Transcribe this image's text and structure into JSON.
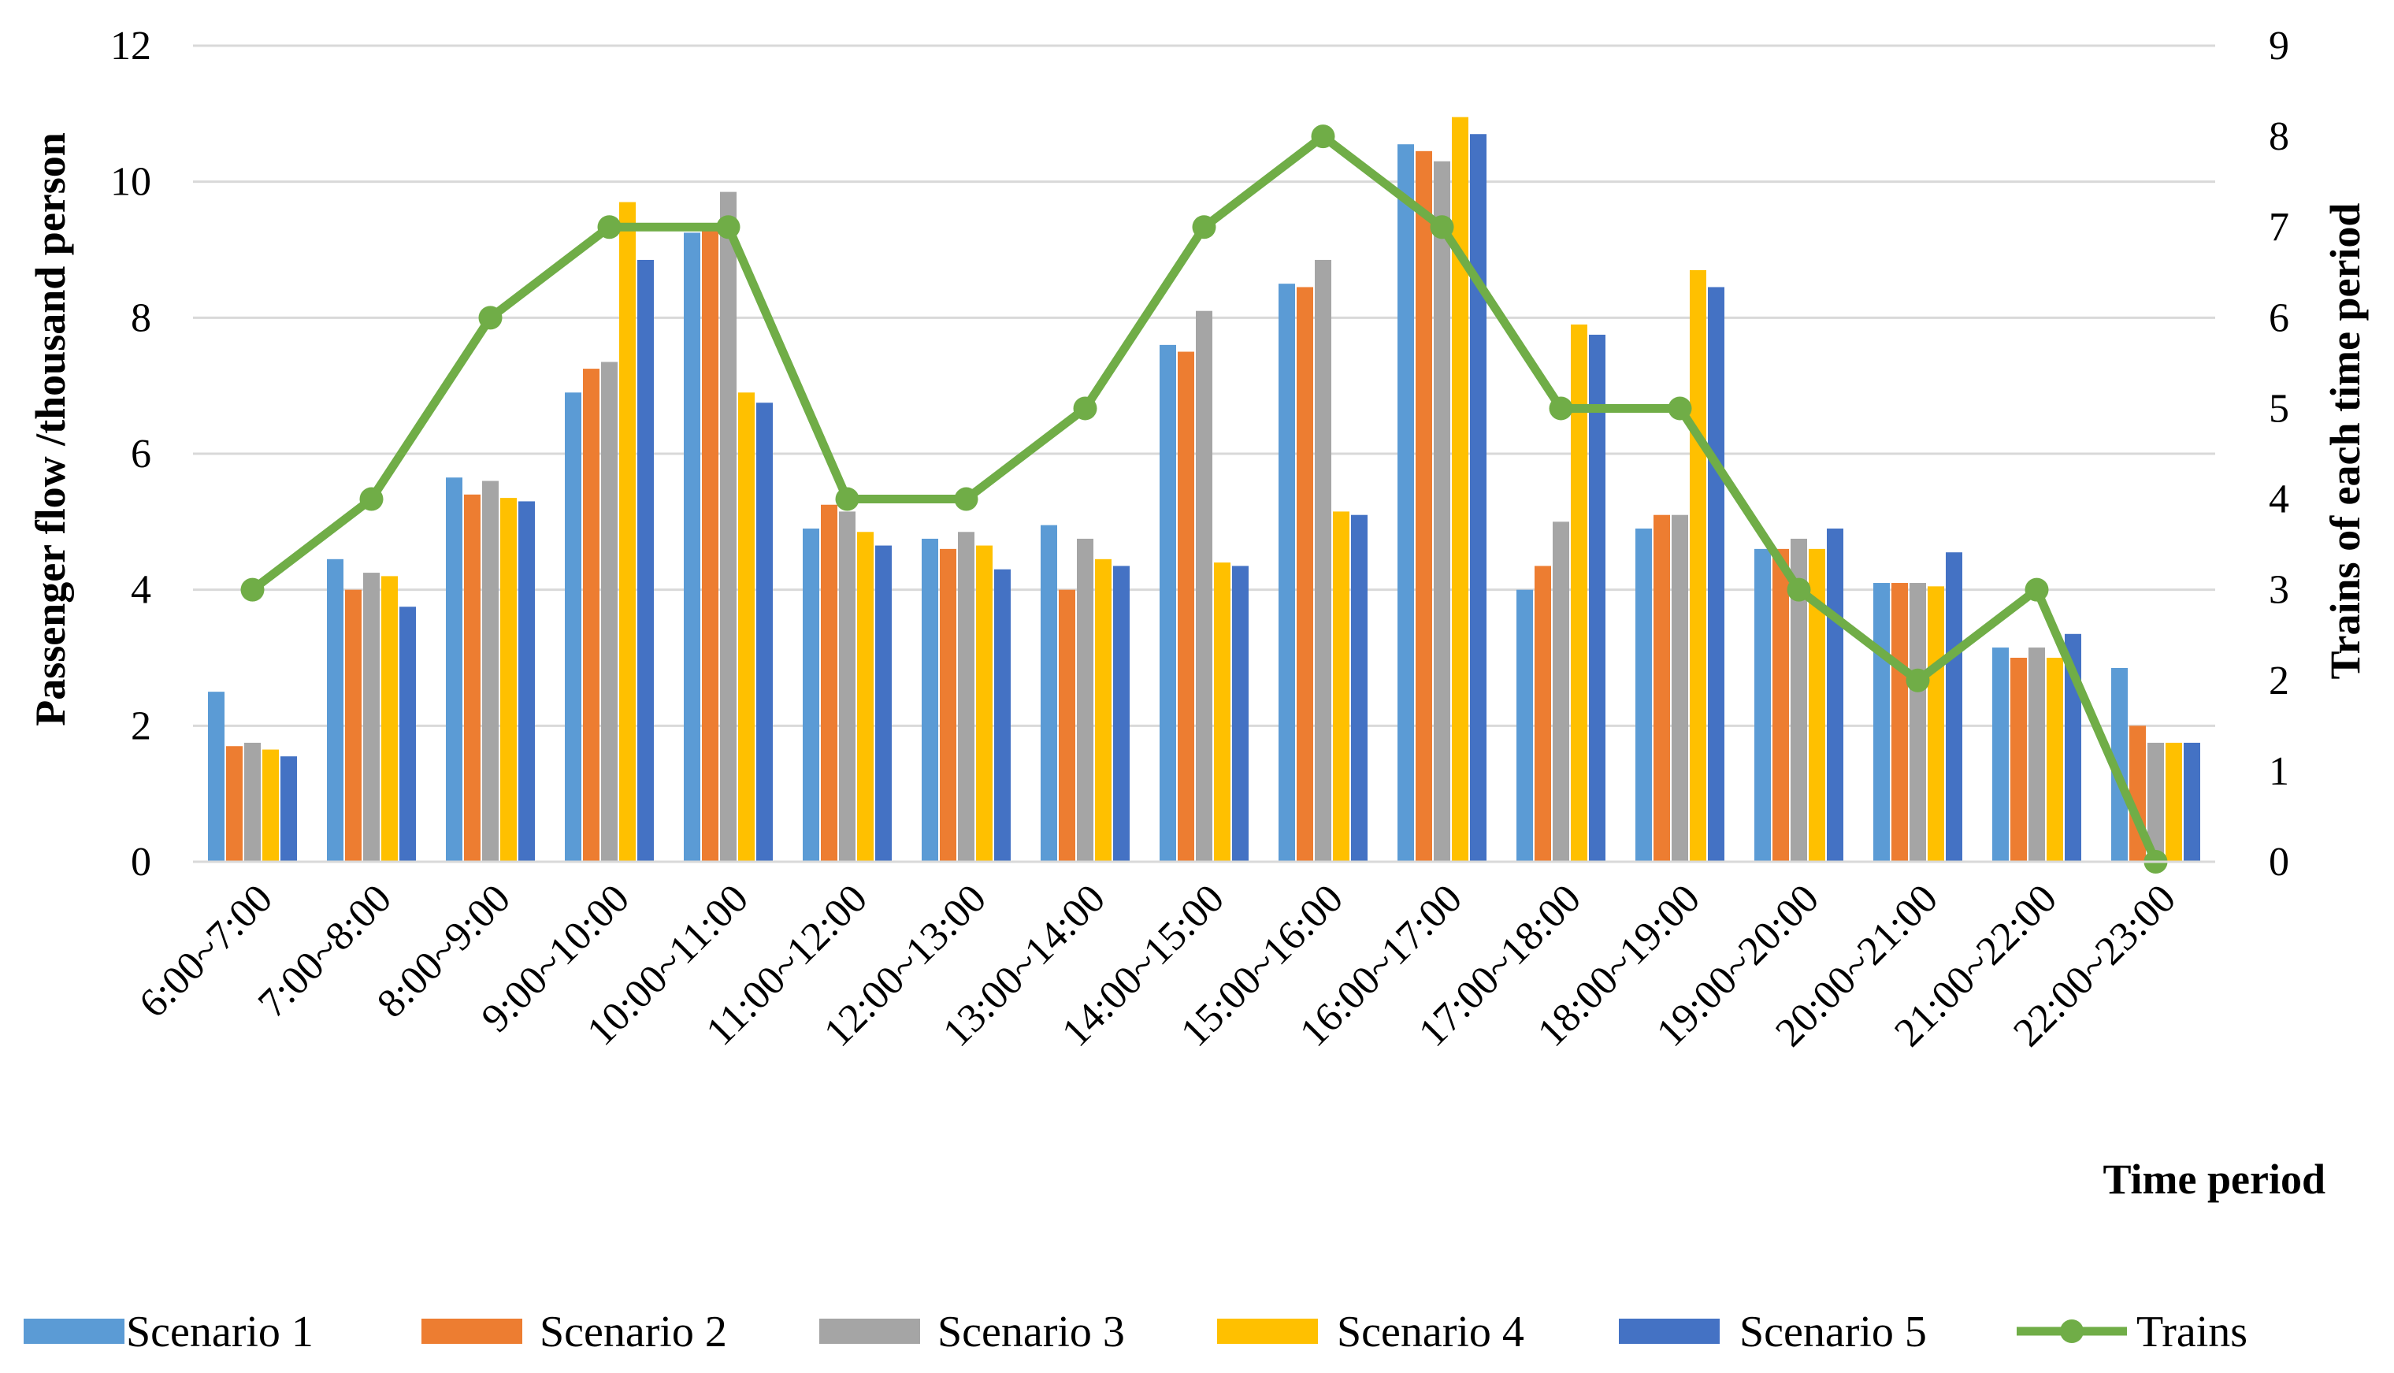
{
  "chart_data": {
    "type": "bar",
    "title": "",
    "categories": [
      "6:00~7:00",
      "7:00~8:00",
      "8:00~9:00",
      "9:00~10:00",
      "10:00~11:00",
      "11:00~12:00",
      "12:00~13:00",
      "13:00~14:00",
      "14:00~15:00",
      "15:00~16:00",
      "16:00~17:00",
      "17:00~18:00",
      "18:00~19:00",
      "19:00~20:00",
      "20:00~21:00",
      "21:00~22:00",
      "22:00~23:00"
    ],
    "series": [
      {
        "name": "Scenario 1",
        "type": "bar",
        "axis": "left",
        "color": "#5B9BD5",
        "values": [
          2.5,
          4.45,
          5.65,
          6.9,
          9.25,
          4.9,
          4.75,
          4.95,
          7.6,
          8.5,
          10.55,
          4.0,
          4.9,
          4.6,
          4.1,
          3.15,
          2.85
        ]
      },
      {
        "name": "Scenario 2",
        "type": "bar",
        "axis": "left",
        "color": "#ED7D31",
        "values": [
          1.7,
          4.0,
          5.4,
          7.25,
          9.3,
          5.25,
          4.6,
          4.0,
          7.5,
          8.45,
          10.45,
          4.35,
          5.1,
          4.6,
          4.1,
          3.0,
          2.0
        ]
      },
      {
        "name": "Scenario 3",
        "type": "bar",
        "axis": "left",
        "color": "#A5A5A5",
        "values": [
          1.75,
          4.25,
          5.6,
          7.35,
          9.85,
          5.15,
          4.85,
          4.75,
          8.1,
          8.85,
          10.3,
          5.0,
          5.1,
          4.75,
          4.1,
          3.15,
          1.75
        ]
      },
      {
        "name": "Scenario 4",
        "type": "bar",
        "axis": "left",
        "color": "#FFC000",
        "values": [
          1.65,
          4.2,
          5.35,
          9.7,
          6.9,
          4.85,
          4.65,
          4.45,
          4.4,
          5.15,
          10.95,
          7.9,
          8.7,
          4.6,
          4.05,
          3.0,
          1.75
        ]
      },
      {
        "name": "Scenario 5",
        "type": "bar",
        "axis": "left",
        "color": "#4472C4",
        "values": [
          1.55,
          3.75,
          5.3,
          8.85,
          6.75,
          4.65,
          4.3,
          4.35,
          4.35,
          5.1,
          10.7,
          7.75,
          8.45,
          4.9,
          4.55,
          3.35,
          1.75
        ]
      },
      {
        "name": "Trains",
        "type": "line",
        "axis": "right",
        "color": "#70AD47",
        "values": [
          3,
          4,
          6,
          7,
          7,
          4,
          4,
          5,
          7,
          8,
          7,
          5,
          5,
          3,
          2,
          3,
          0
        ]
      }
    ],
    "y_left": {
      "label": "Passenger flow /thousand person",
      "range": [
        0,
        12
      ],
      "ticks": [
        "0",
        "2",
        "4",
        "6",
        "8",
        "10",
        "12"
      ]
    },
    "y_right": {
      "label": "Trains of each time period",
      "range": [
        0,
        9
      ],
      "ticks": [
        "0",
        "1",
        "2",
        "3",
        "4",
        "5",
        "6",
        "7",
        "8",
        "9"
      ]
    },
    "xlabel": "Time period",
    "grid": true,
    "legend": "bottom"
  }
}
